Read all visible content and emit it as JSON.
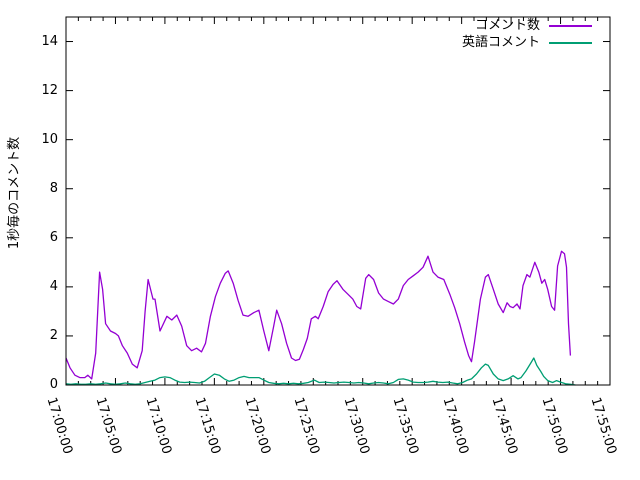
{
  "chart_data": {
    "type": "line",
    "title": "",
    "xlabel": "",
    "ylabel": "1秒毎のコメント数",
    "x_axis_unit": "minutes after 17:00:00",
    "xlim": [
      0,
      55
    ],
    "ylim": [
      0,
      15
    ],
    "grid": false,
    "legend_position": "top-right-inside",
    "y_ticks": [
      0,
      2,
      4,
      6,
      8,
      10,
      12,
      14
    ],
    "x_tick_minutes": [
      0,
      5,
      10,
      15,
      20,
      25,
      30,
      35,
      40,
      45,
      50,
      55
    ],
    "x_tick_labels": [
      "17:00:00",
      "17:05:00",
      "17:10:00",
      "17:15:00",
      "17:20:00",
      "17:25:00",
      "17:30:00",
      "17:35:00",
      "17:40:00",
      "17:45:00",
      "17:50:00",
      "17:55:00"
    ],
    "x_minor_tick_step_minutes": 1.25,
    "series": [
      {
        "name": "コメント数",
        "color": "#9400d3",
        "points": [
          [
            0.0,
            1.1
          ],
          [
            0.4,
            0.7
          ],
          [
            0.9,
            0.4
          ],
          [
            1.4,
            0.3
          ],
          [
            1.9,
            0.3
          ],
          [
            2.2,
            0.4
          ],
          [
            2.6,
            0.25
          ],
          [
            3.0,
            1.3
          ],
          [
            3.4,
            4.6
          ],
          [
            3.7,
            3.9
          ],
          [
            4.0,
            2.5
          ],
          [
            4.5,
            2.2
          ],
          [
            5.0,
            2.1
          ],
          [
            5.3,
            2.0
          ],
          [
            5.7,
            1.6
          ],
          [
            6.2,
            1.3
          ],
          [
            6.7,
            0.85
          ],
          [
            7.2,
            0.7
          ],
          [
            7.7,
            1.4
          ],
          [
            8.0,
            3.0
          ],
          [
            8.3,
            4.3
          ],
          [
            8.8,
            3.5
          ],
          [
            9.0,
            3.5
          ],
          [
            9.5,
            2.2
          ],
          [
            10.2,
            2.8
          ],
          [
            10.7,
            2.65
          ],
          [
            11.2,
            2.85
          ],
          [
            11.7,
            2.4
          ],
          [
            12.2,
            1.6
          ],
          [
            12.7,
            1.4
          ],
          [
            13.2,
            1.5
          ],
          [
            13.7,
            1.35
          ],
          [
            14.1,
            1.7
          ],
          [
            14.6,
            2.8
          ],
          [
            15.1,
            3.6
          ],
          [
            15.6,
            4.15
          ],
          [
            16.1,
            4.55
          ],
          [
            16.4,
            4.65
          ],
          [
            16.9,
            4.15
          ],
          [
            17.4,
            3.45
          ],
          [
            17.9,
            2.85
          ],
          [
            18.4,
            2.8
          ],
          [
            19.0,
            2.95
          ],
          [
            19.5,
            3.05
          ],
          [
            20.0,
            2.2
          ],
          [
            20.5,
            1.4
          ],
          [
            21.0,
            2.4
          ],
          [
            21.3,
            3.05
          ],
          [
            21.8,
            2.5
          ],
          [
            22.3,
            1.7
          ],
          [
            22.8,
            1.1
          ],
          [
            23.2,
            1.0
          ],
          [
            23.6,
            1.05
          ],
          [
            24.0,
            1.45
          ],
          [
            24.4,
            1.9
          ],
          [
            24.8,
            2.7
          ],
          [
            25.2,
            2.8
          ],
          [
            25.5,
            2.7
          ],
          [
            26.0,
            3.2
          ],
          [
            26.5,
            3.8
          ],
          [
            27.0,
            4.1
          ],
          [
            27.4,
            4.25
          ],
          [
            28.0,
            3.9
          ],
          [
            28.5,
            3.7
          ],
          [
            29.0,
            3.5
          ],
          [
            29.4,
            3.2
          ],
          [
            29.8,
            3.1
          ],
          [
            30.3,
            4.35
          ],
          [
            30.6,
            4.5
          ],
          [
            31.1,
            4.3
          ],
          [
            31.6,
            3.75
          ],
          [
            32.1,
            3.5
          ],
          [
            32.6,
            3.4
          ],
          [
            33.1,
            3.3
          ],
          [
            33.6,
            3.5
          ],
          [
            34.1,
            4.05
          ],
          [
            34.6,
            4.3
          ],
          [
            35.1,
            4.45
          ],
          [
            35.6,
            4.6
          ],
          [
            36.1,
            4.8
          ],
          [
            36.6,
            5.25
          ],
          [
            37.1,
            4.6
          ],
          [
            37.6,
            4.4
          ],
          [
            38.2,
            4.3
          ],
          [
            38.8,
            3.7
          ],
          [
            39.3,
            3.15
          ],
          [
            39.8,
            2.5
          ],
          [
            40.3,
            1.75
          ],
          [
            40.7,
            1.2
          ],
          [
            41.0,
            0.95
          ],
          [
            41.3,
            1.75
          ],
          [
            41.9,
            3.5
          ],
          [
            42.4,
            4.4
          ],
          [
            42.7,
            4.5
          ],
          [
            43.2,
            3.9
          ],
          [
            43.7,
            3.3
          ],
          [
            44.2,
            2.95
          ],
          [
            44.6,
            3.35
          ],
          [
            44.9,
            3.2
          ],
          [
            45.2,
            3.15
          ],
          [
            45.6,
            3.3
          ],
          [
            45.9,
            3.1
          ],
          [
            46.2,
            4.05
          ],
          [
            46.6,
            4.5
          ],
          [
            46.9,
            4.4
          ],
          [
            47.4,
            5.0
          ],
          [
            47.8,
            4.6
          ],
          [
            48.1,
            4.15
          ],
          [
            48.4,
            4.3
          ],
          [
            48.7,
            3.9
          ],
          [
            49.1,
            3.2
          ],
          [
            49.4,
            3.05
          ],
          [
            49.7,
            4.85
          ],
          [
            50.1,
            5.45
          ],
          [
            50.4,
            5.35
          ],
          [
            50.6,
            4.8
          ],
          [
            50.8,
            2.5
          ],
          [
            51.0,
            1.2
          ]
        ]
      },
      {
        "name": "英語コメント",
        "color": "#009e73",
        "points": [
          [
            0.0,
            0.05
          ],
          [
            0.5,
            0.03
          ],
          [
            1.0,
            0.05
          ],
          [
            1.5,
            0.03
          ],
          [
            2.0,
            0.03
          ],
          [
            2.5,
            0.05
          ],
          [
            3.0,
            0.03
          ],
          [
            3.5,
            0.05
          ],
          [
            4.0,
            0.08
          ],
          [
            4.5,
            0.05
          ],
          [
            5.0,
            0.03
          ],
          [
            5.5,
            0.05
          ],
          [
            6.0,
            0.08
          ],
          [
            6.5,
            0.05
          ],
          [
            7.0,
            0.03
          ],
          [
            7.5,
            0.05
          ],
          [
            8.0,
            0.1
          ],
          [
            8.5,
            0.15
          ],
          [
            9.0,
            0.2
          ],
          [
            9.5,
            0.3
          ],
          [
            10.0,
            0.33
          ],
          [
            10.5,
            0.3
          ],
          [
            11.0,
            0.2
          ],
          [
            11.5,
            0.12
          ],
          [
            12.0,
            0.1
          ],
          [
            12.5,
            0.12
          ],
          [
            13.0,
            0.1
          ],
          [
            13.5,
            0.08
          ],
          [
            14.0,
            0.15
          ],
          [
            14.5,
            0.3
          ],
          [
            15.0,
            0.45
          ],
          [
            15.5,
            0.4
          ],
          [
            16.0,
            0.25
          ],
          [
            16.5,
            0.15
          ],
          [
            17.0,
            0.2
          ],
          [
            17.5,
            0.3
          ],
          [
            18.0,
            0.35
          ],
          [
            18.5,
            0.3
          ],
          [
            19.0,
            0.3
          ],
          [
            19.5,
            0.3
          ],
          [
            20.0,
            0.2
          ],
          [
            20.5,
            0.1
          ],
          [
            21.0,
            0.07
          ],
          [
            21.5,
            0.05
          ],
          [
            22.0,
            0.07
          ],
          [
            22.5,
            0.05
          ],
          [
            23.0,
            0.07
          ],
          [
            23.5,
            0.05
          ],
          [
            24.0,
            0.07
          ],
          [
            24.5,
            0.1
          ],
          [
            25.1,
            0.2
          ],
          [
            25.6,
            0.1
          ],
          [
            26.1,
            0.12
          ],
          [
            26.6,
            0.1
          ],
          [
            27.1,
            0.08
          ],
          [
            27.6,
            0.1
          ],
          [
            28.1,
            0.12
          ],
          [
            28.6,
            0.1
          ],
          [
            29.1,
            0.08
          ],
          [
            29.6,
            0.1
          ],
          [
            30.1,
            0.08
          ],
          [
            30.6,
            0.05
          ],
          [
            31.1,
            0.08
          ],
          [
            31.6,
            0.1
          ],
          [
            32.1,
            0.08
          ],
          [
            32.6,
            0.05
          ],
          [
            33.1,
            0.1
          ],
          [
            33.6,
            0.23
          ],
          [
            34.1,
            0.25
          ],
          [
            34.6,
            0.2
          ],
          [
            35.1,
            0.12
          ],
          [
            35.6,
            0.1
          ],
          [
            36.1,
            0.1
          ],
          [
            36.6,
            0.12
          ],
          [
            37.1,
            0.15
          ],
          [
            37.6,
            0.12
          ],
          [
            38.1,
            0.1
          ],
          [
            38.6,
            0.12
          ],
          [
            39.1,
            0.08
          ],
          [
            39.6,
            0.05
          ],
          [
            40.1,
            0.1
          ],
          [
            40.6,
            0.2
          ],
          [
            41.0,
            0.25
          ],
          [
            41.5,
            0.45
          ],
          [
            42.0,
            0.7
          ],
          [
            42.4,
            0.85
          ],
          [
            42.7,
            0.8
          ],
          [
            43.2,
            0.45
          ],
          [
            43.7,
            0.25
          ],
          [
            44.2,
            0.18
          ],
          [
            44.7,
            0.25
          ],
          [
            45.2,
            0.38
          ],
          [
            45.7,
            0.25
          ],
          [
            46.0,
            0.3
          ],
          [
            46.5,
            0.57
          ],
          [
            47.0,
            0.9
          ],
          [
            47.3,
            1.1
          ],
          [
            47.6,
            0.8
          ],
          [
            48.0,
            0.55
          ],
          [
            48.3,
            0.35
          ],
          [
            48.7,
            0.18
          ],
          [
            49.2,
            0.1
          ],
          [
            49.6,
            0.18
          ],
          [
            50.0,
            0.12
          ],
          [
            50.5,
            0.05
          ],
          [
            51.0,
            0.03
          ],
          [
            51.5,
            0.0
          ]
        ]
      }
    ]
  },
  "colors": {
    "background": "#ffffff",
    "axis": "#000000",
    "text": "#000000",
    "series1": "#9400d3",
    "series2": "#009e73"
  }
}
